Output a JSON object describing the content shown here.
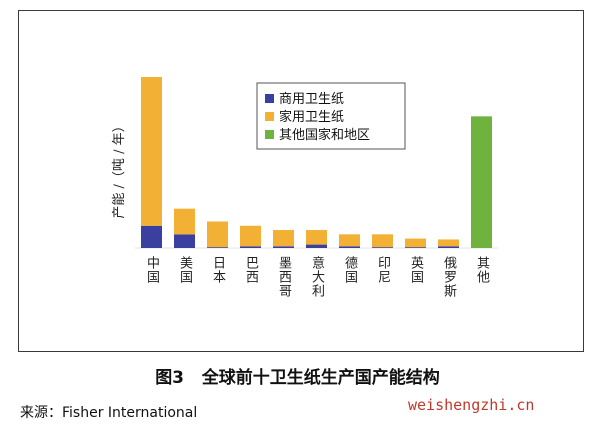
{
  "chart_data": {
    "type": "bar",
    "stacked": true,
    "ylabel": "产能 /（吨 / 年）",
    "categories": [
      "中国",
      "美国",
      "日本",
      "巴西",
      "墨西哥",
      "意大利",
      "德国",
      "印尼",
      "英国",
      "俄罗斯",
      "其他"
    ],
    "series": [
      {
        "name": "商用卫生纸",
        "color": "#3a3fa0",
        "values": [
          13,
          8,
          0.5,
          1,
          1,
          2,
          1,
          0.5,
          0.5,
          1,
          0
        ]
      },
      {
        "name": "家用卫生纸",
        "color": "#f2b134",
        "values": [
          87,
          15,
          15,
          12,
          9.5,
          8.5,
          7,
          7.5,
          5,
          4,
          0
        ]
      },
      {
        "name": "其他国家和地区",
        "color": "#6fb23e",
        "values": [
          0,
          0,
          0,
          0,
          0,
          0,
          0,
          0,
          0,
          0,
          77
        ]
      }
    ],
    "legend_position": "top-center",
    "grid": false
  },
  "caption": {
    "label": "图3",
    "title": "全球前十卫生纸生产国产能结构"
  },
  "source": "来源：Fisher International",
  "watermark": "weishengzhi.cn"
}
